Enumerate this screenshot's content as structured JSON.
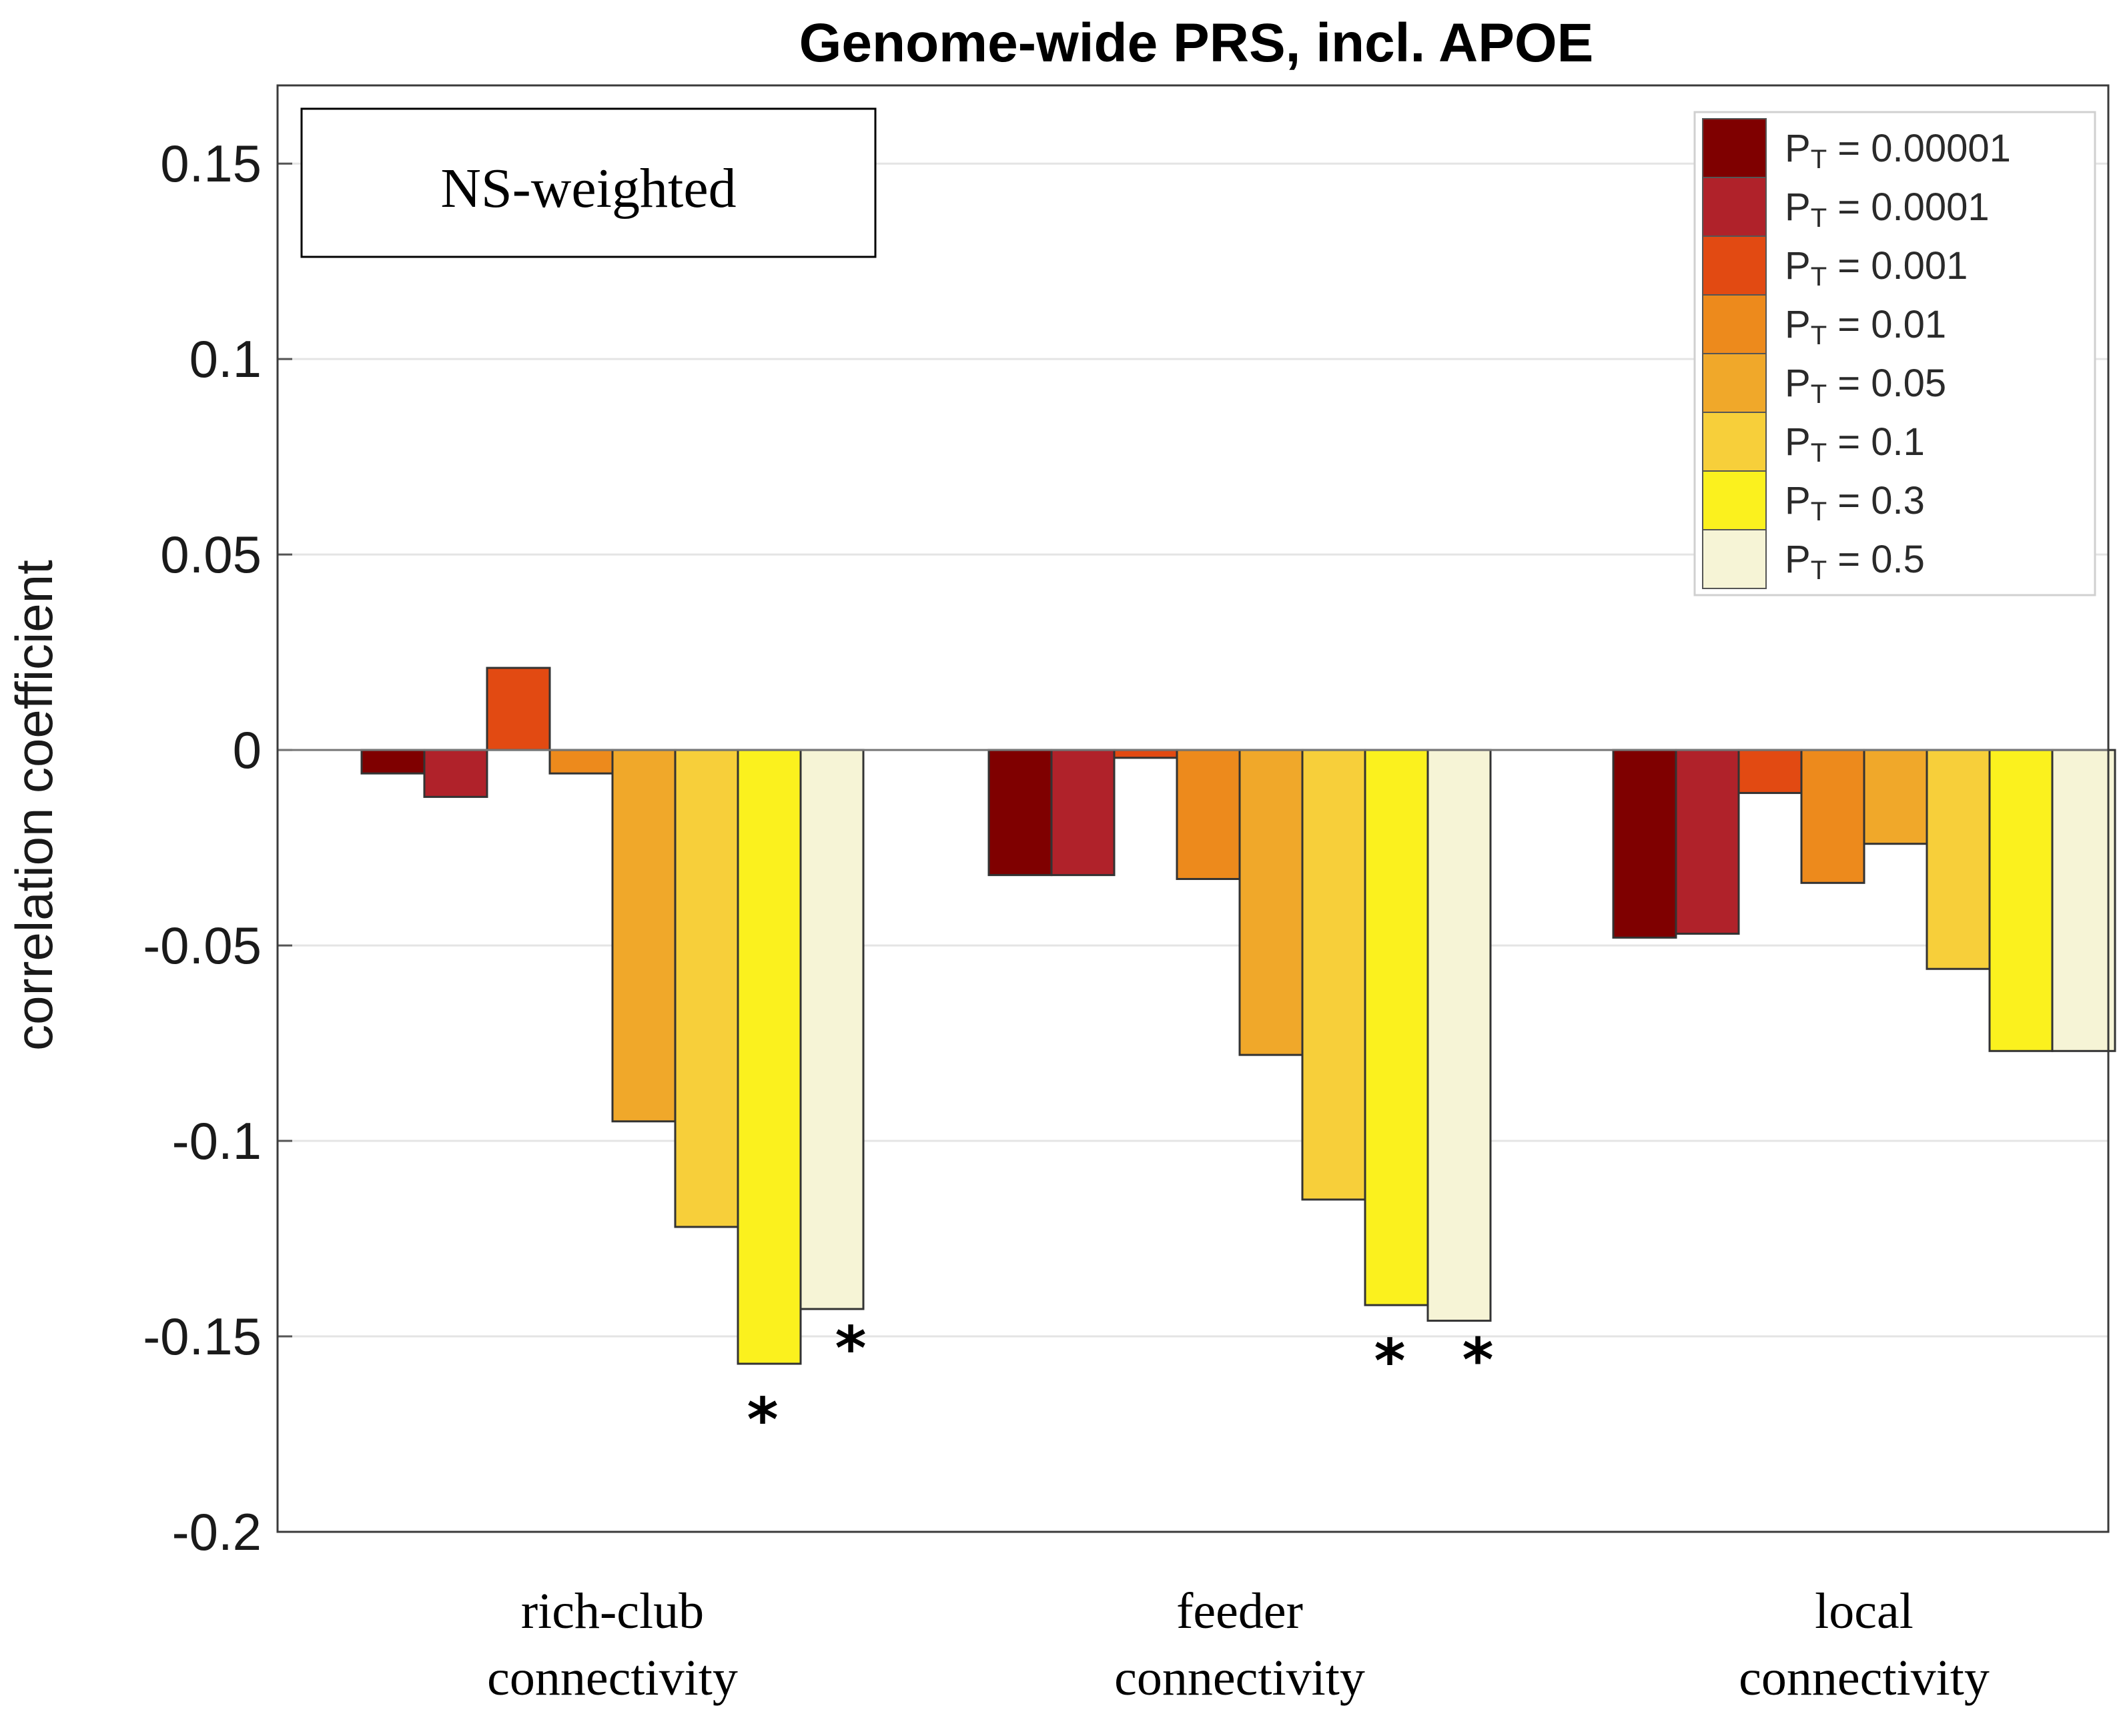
{
  "chart_data": {
    "type": "bar",
    "title": "Genome-wide PRS, incl. APOE",
    "annotation": "NS-weighted",
    "xlabel": "",
    "ylabel": "correlation coefficient",
    "ylim": [
      -0.2,
      0.17
    ],
    "yticks": [
      0.15,
      0.1,
      0.05,
      0,
      -0.05,
      -0.1,
      -0.15,
      -0.2
    ],
    "ytick_labels": [
      "0.15",
      "0.1",
      "0.05",
      "0",
      "-0.05",
      "-0.1",
      "-0.15",
      "-0.2"
    ],
    "grid": true,
    "legend_position": "top-right",
    "categories": [
      [
        "rich-club",
        "connectivity"
      ],
      [
        "feeder",
        "connectivity"
      ],
      [
        "local",
        "connectivity"
      ]
    ],
    "series": [
      {
        "name": "P",
        "subscript": "T",
        "suffix": " = 0.00001",
        "color": "#7f0000",
        "values": [
          -0.006,
          -0.032,
          -0.048
        ]
      },
      {
        "name": "P",
        "subscript": "T",
        "suffix": " = 0.0001",
        "color": "#b0222a",
        "values": [
          -0.012,
          -0.032,
          -0.047
        ]
      },
      {
        "name": "P",
        "subscript": "T",
        "suffix": " = 0.001",
        "color": "#e24a12",
        "values": [
          0.021,
          -0.002,
          -0.011
        ]
      },
      {
        "name": "P",
        "subscript": "T",
        "suffix": " = 0.01",
        "color": "#ed8a1c",
        "values": [
          -0.006,
          -0.033,
          -0.034
        ]
      },
      {
        "name": "P",
        "subscript": "T",
        "suffix": " = 0.05",
        "color": "#f0a82a",
        "values": [
          -0.095,
          -0.078,
          -0.024
        ]
      },
      {
        "name": "P",
        "subscript": "T",
        "suffix": " = 0.1",
        "color": "#f7cf3a",
        "values": [
          -0.122,
          -0.115,
          -0.056
        ]
      },
      {
        "name": "P",
        "subscript": "T",
        "suffix": " = 0.3",
        "color": "#fbf11e",
        "values": [
          -0.157,
          -0.142,
          -0.077
        ]
      },
      {
        "name": "P",
        "subscript": "T",
        "suffix": " = 0.5",
        "color": "#f6f4d6",
        "values": [
          -0.143,
          -0.146,
          -0.077
        ]
      }
    ],
    "significance": [
      {
        "category_index": 0,
        "series_index": 6,
        "label": "*"
      },
      {
        "category_index": 0,
        "series_index": 7,
        "label": "*"
      },
      {
        "category_index": 1,
        "series_index": 6,
        "label": "*"
      },
      {
        "category_index": 1,
        "series_index": 7,
        "label": "*"
      }
    ]
  }
}
